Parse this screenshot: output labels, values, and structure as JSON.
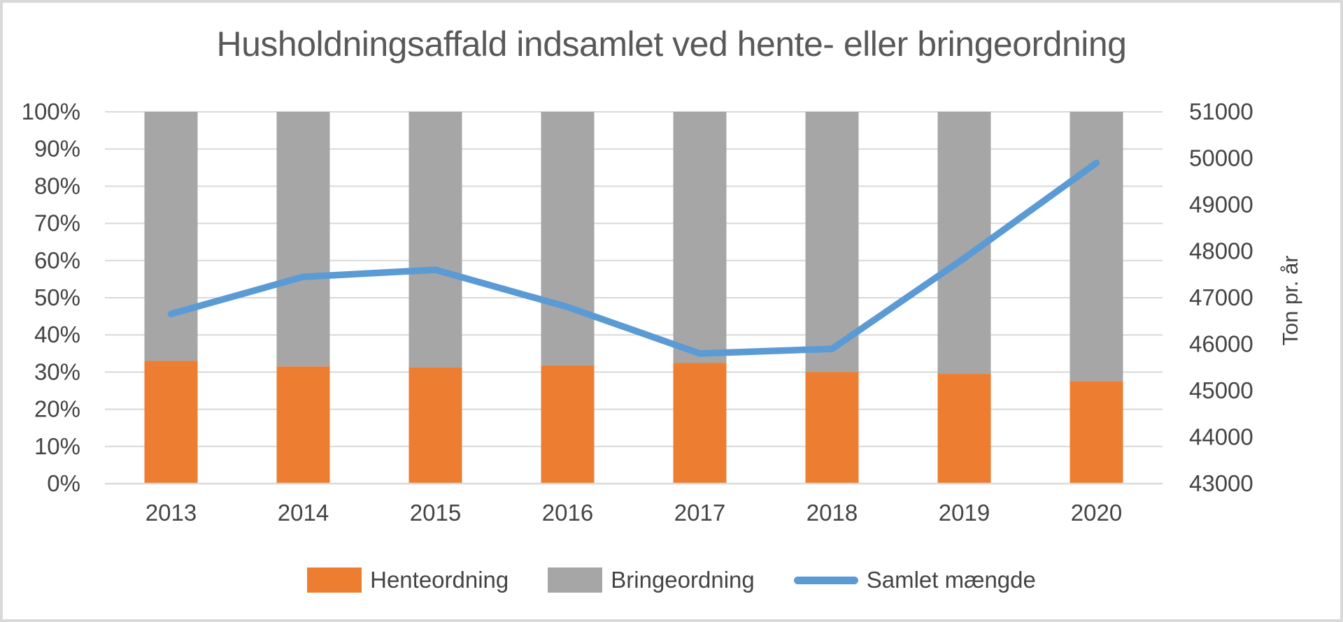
{
  "colors": {
    "henteordning_orange": "#ED7D31",
    "bringeordning_gray": "#A6A6A6",
    "samlet_line_blue": "#5B9BD5",
    "gridline": "#D9D9D9",
    "frame_border": "#D9D9D9",
    "title_text": "#595959",
    "axis_text": "#444444"
  },
  "chart_data": {
    "type": "combo",
    "title": "Husholdningsaffald indsamlet ved hente- eller bringeordning",
    "categories": [
      "2013",
      "2014",
      "2015",
      "2016",
      "2017",
      "2018",
      "2019",
      "2020"
    ],
    "series": [
      {
        "name": "Henteordning",
        "type": "bar",
        "stacking": "percent",
        "axis": "left",
        "color": "#ED7D31",
        "values": [
          33.0,
          31.5,
          31.2,
          31.8,
          32.5,
          30.0,
          29.5,
          27.6
        ]
      },
      {
        "name": "Bringeordning",
        "type": "bar",
        "stacking": "percent",
        "axis": "left",
        "color": "#A6A6A6",
        "values": [
          67.0,
          68.5,
          68.8,
          68.2,
          67.5,
          70.0,
          70.5,
          72.4
        ]
      },
      {
        "name": "Samlet mængde",
        "type": "line",
        "axis": "right",
        "color": "#5B9BD5",
        "values": [
          46650,
          47450,
          47600,
          46800,
          45800,
          45900,
          47850,
          49900
        ]
      }
    ],
    "left_axis": {
      "min": 0,
      "max": 100,
      "tick_labels": [
        "0%",
        "10%",
        "20%",
        "30%",
        "40%",
        "50%",
        "60%",
        "70%",
        "80%",
        "90%",
        "100%"
      ]
    },
    "right_axis": {
      "title": "Ton pr. år",
      "min": 43000,
      "max": 51000,
      "tick_labels": [
        "43000",
        "44000",
        "45000",
        "46000",
        "47000",
        "48000",
        "49000",
        "50000",
        "51000"
      ]
    },
    "xlabel": "",
    "legend_position": "bottom",
    "grid": true
  }
}
